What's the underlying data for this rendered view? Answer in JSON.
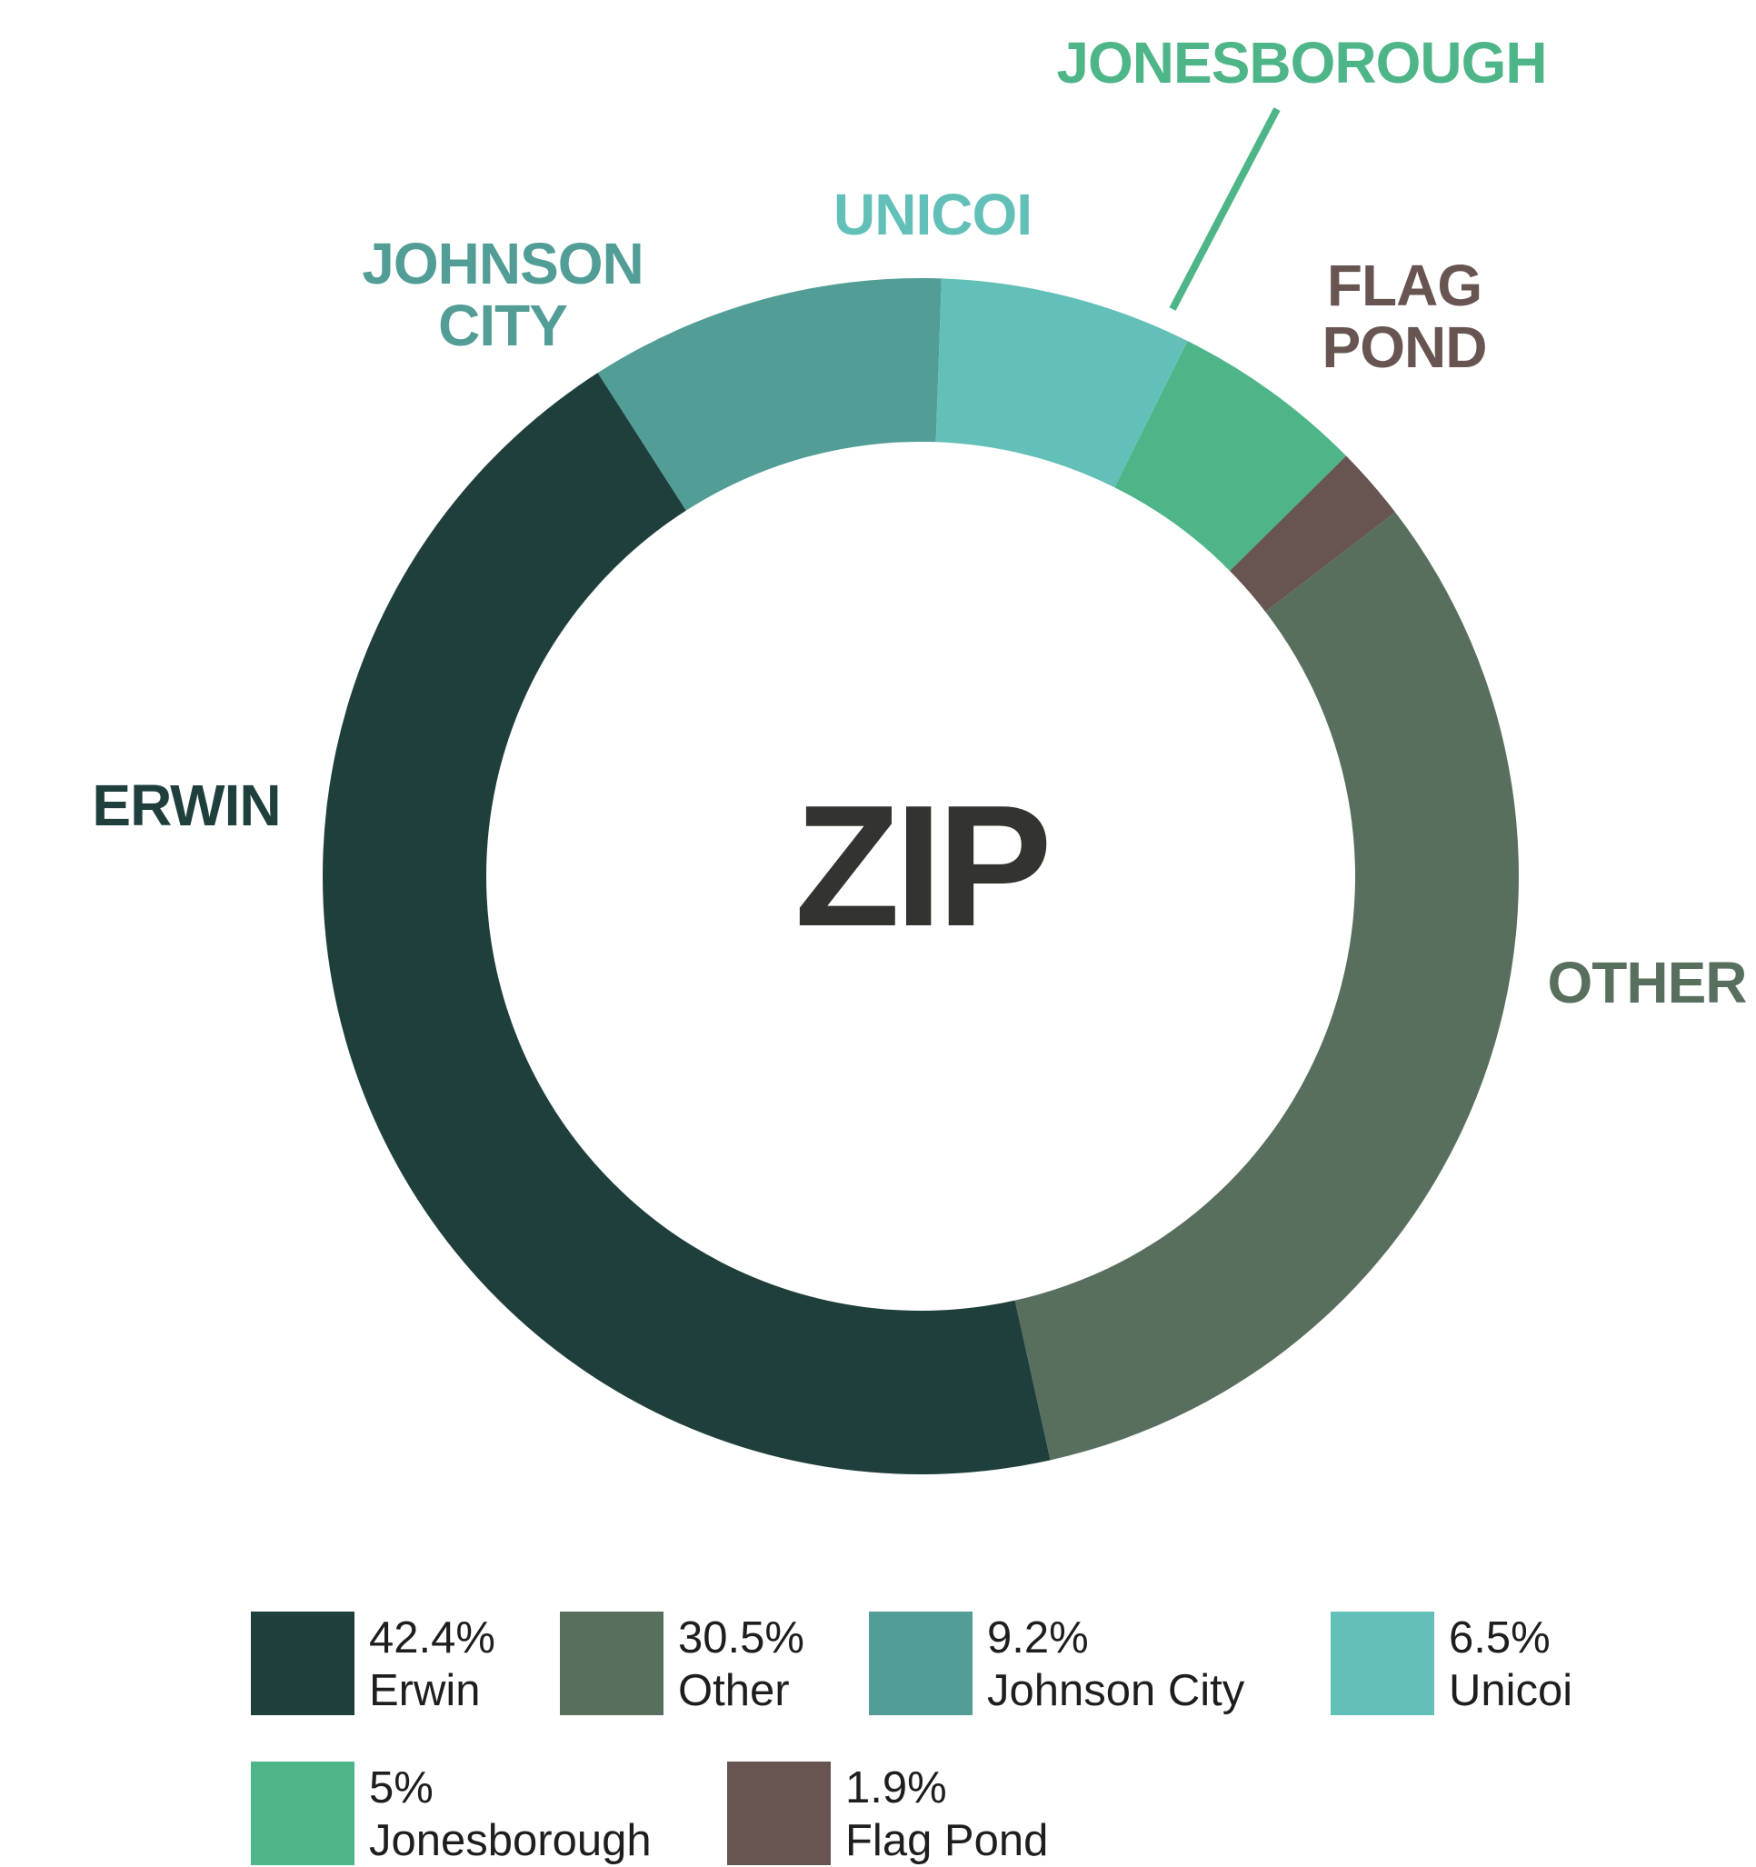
{
  "chart_data": {
    "type": "pie",
    "variant": "donut",
    "center_label": "ZIP",
    "slices": [
      {
        "name": "Erwin",
        "label": "ERWIN",
        "label_lines": [
          "ERWIN"
        ],
        "value": 42.4,
        "value_text": "42.4%",
        "legend_name": "Erwin",
        "color": "#1f3f3d"
      },
      {
        "name": "Other",
        "label": "OTHER",
        "label_lines": [
          "OTHER"
        ],
        "value": 30.5,
        "value_text": "30.5%",
        "legend_name": "Other",
        "color": "#586f5e"
      },
      {
        "name": "Johnson City",
        "label": "JOHNSON CITY",
        "label_lines": [
          "JOHNSON",
          "CITY"
        ],
        "value": 9.2,
        "value_text": "9.2%",
        "legend_name": "Johnson City",
        "color": "#529e97"
      },
      {
        "name": "Unicoi",
        "label": "UNICOI",
        "label_lines": [
          "UNICOI"
        ],
        "value": 6.5,
        "value_text": "6.5%",
        "legend_name": "Unicoi",
        "color": "#62c0b8"
      },
      {
        "name": "Jonesborough",
        "label": "JONESBOROUGH",
        "label_lines": [
          "JONESBOROUGH"
        ],
        "value": 5,
        "value_text": "5%",
        "legend_name": "Jonesborough",
        "color": "#4eb588"
      },
      {
        "name": "Flag Pond",
        "label": "FLAG POND",
        "label_lines": [
          "FLAG",
          "POND"
        ],
        "value": 1.9,
        "value_text": "1.9%",
        "legend_name": "Flag Pond",
        "color": "#685552"
      }
    ],
    "legend_order": [
      "Erwin",
      "Other",
      "Johnson City",
      "Unicoi",
      "Jonesborough",
      "Flag Pond"
    ],
    "legend_placement": "bottom"
  }
}
